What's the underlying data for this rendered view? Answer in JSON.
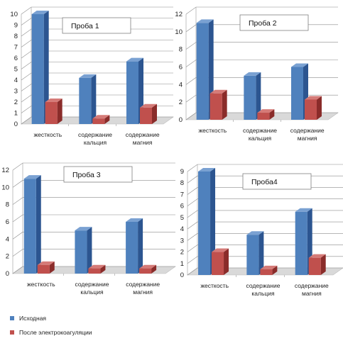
{
  "legend": [
    {
      "label": "Исходная",
      "color": "#4f81bd"
    },
    {
      "label": "После электрокоагуляции",
      "color": "#c0504d"
    }
  ],
  "colors": {
    "series1": "#4f81bd",
    "series1_dark": "#2c5590",
    "series1_light": "#7aa1d2",
    "series2": "#c0504d",
    "series2_dark": "#8a2c2a",
    "series2_light": "#d57b78",
    "grid": "#8c8c8c",
    "floor": "#d9d9d9"
  },
  "chart_data": [
    {
      "type": "bar",
      "title": "Проба 1",
      "categories": [
        "жесткость",
        "содержание кальция",
        "содержание магния"
      ],
      "ylim": [
        0,
        10
      ],
      "yticks": [
        0,
        1,
        2,
        3,
        4,
        5,
        6,
        7,
        8,
        9,
        10
      ],
      "grid": true,
      "series": [
        {
          "name": "Исходная",
          "values": [
            10.0,
            4.2,
            5.7
          ]
        },
        {
          "name": "После электрокоагуляции",
          "values": [
            2.0,
            0.5,
            1.5
          ]
        }
      ]
    },
    {
      "type": "bar",
      "title": "Проба 2",
      "categories": [
        "жесткость",
        "содержание кальция",
        "содержание магния"
      ],
      "ylim": [
        0,
        12
      ],
      "yticks": [
        0,
        2,
        4,
        6,
        8,
        10,
        12
      ],
      "grid": true,
      "series": [
        {
          "name": "Исходная",
          "values": [
            11.0,
            5.0,
            6.0
          ]
        },
        {
          "name": "После электрокоагуляции",
          "values": [
            3.0,
            0.8,
            2.3
          ]
        }
      ]
    },
    {
      "type": "bar",
      "title": "Проба 3",
      "categories": [
        "жесткость",
        "содержание кальция",
        "содержание магния"
      ],
      "ylim": [
        0,
        12
      ],
      "yticks": [
        0,
        2,
        4,
        6,
        8,
        10,
        12
      ],
      "grid": true,
      "series": [
        {
          "name": "Исходная",
          "values": [
            11.0,
            5.0,
            6.0
          ]
        },
        {
          "name": "После электрокоагуляции",
          "values": [
            1.0,
            0.6,
            0.6
          ]
        }
      ]
    },
    {
      "type": "bar",
      "title": "Проба4",
      "categories": [
        "жесткость",
        "содержание кальция",
        "содержание магния"
      ],
      "ylim": [
        0,
        9
      ],
      "yticks": [
        0,
        1,
        2,
        3,
        4,
        5,
        6,
        7,
        8,
        9
      ],
      "grid": true,
      "series": [
        {
          "name": "Исходная",
          "values": [
            9.0,
            3.5,
            5.5
          ]
        },
        {
          "name": "После электрокоагуляции",
          "values": [
            2.0,
            0.5,
            1.5
          ]
        }
      ]
    }
  ]
}
